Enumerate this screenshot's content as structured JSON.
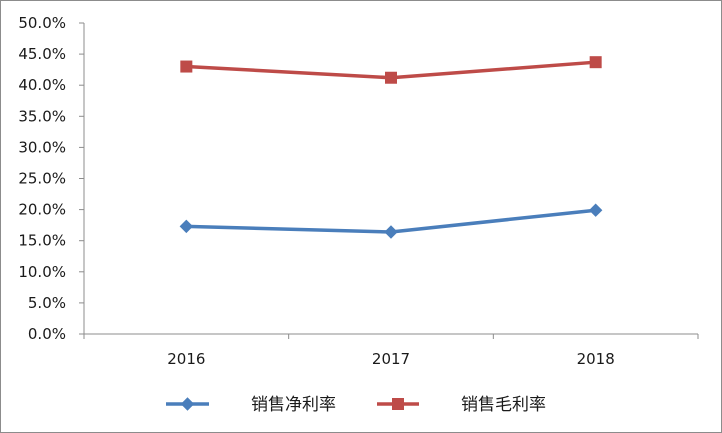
{
  "chart_data": {
    "type": "line",
    "categories": [
      "2016",
      "2017",
      "2018"
    ],
    "series": [
      {
        "name": "销售净利率",
        "values": [
          17.3,
          16.4,
          19.9
        ],
        "color": "#4a7ebb",
        "marker": "diamond"
      },
      {
        "name": "销售毛利率",
        "values": [
          43.0,
          41.2,
          43.7
        ],
        "color": "#be4b48",
        "marker": "square"
      }
    ],
    "ylim": [
      0,
      50
    ],
    "y_ticks": [
      "0.0%",
      "5.0%",
      "10.0%",
      "15.0%",
      "20.0%",
      "25.0%",
      "30.0%",
      "35.0%",
      "40.0%",
      "45.0%",
      "50.0%"
    ],
    "y_tick_values": [
      0,
      5,
      10,
      15,
      20,
      25,
      30,
      35,
      40,
      45,
      50
    ],
    "grid": false,
    "legend_position": "bottom"
  }
}
